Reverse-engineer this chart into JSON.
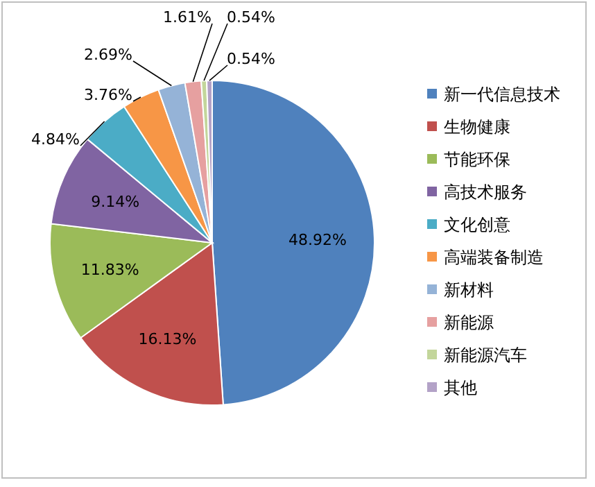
{
  "chart_data": {
    "type": "pie",
    "categories": [
      "新一代信息技术",
      "生物健康",
      "节能环保",
      "高技术服务",
      "文化创意",
      "高端装备制造",
      "新材料",
      "新能源",
      "新能源汽车",
      "其他"
    ],
    "values": [
      48.92,
      16.13,
      11.83,
      9.14,
      4.84,
      3.76,
      2.69,
      1.61,
      0.54,
      0.54
    ],
    "colors": [
      "#4f81bd",
      "#c0504d",
      "#9bbb59",
      "#8064a2",
      "#4bacc6",
      "#f79646",
      "#95b3d7",
      "#e6a0a0",
      "#c3d69b",
      "#b3a2c7"
    ],
    "value_labels": [
      "48.92%",
      "16.13%",
      "11.83%",
      "9.14%",
      "4.84%",
      "3.76%",
      "2.69%",
      "1.61%",
      "0.54%",
      "0.54%"
    ],
    "legend": "right"
  }
}
